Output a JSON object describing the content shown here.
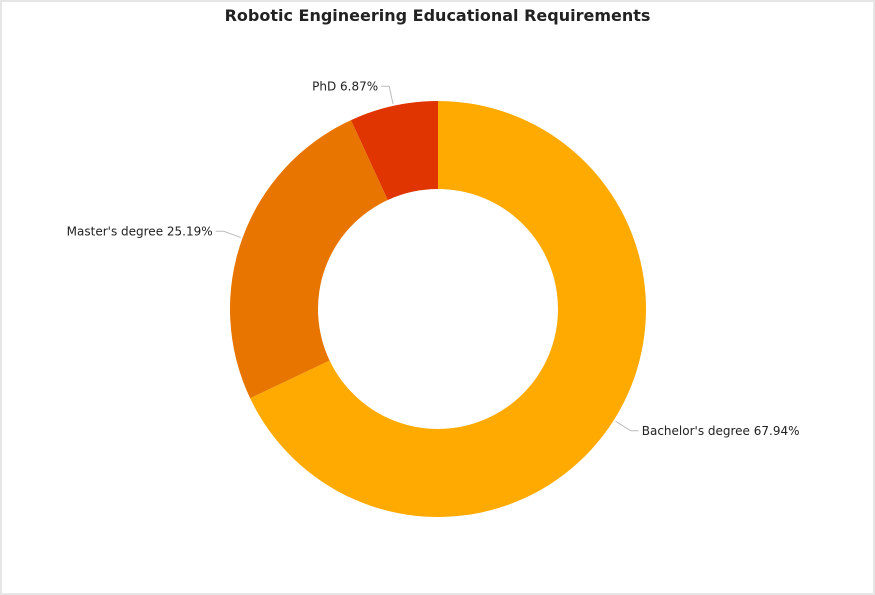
{
  "chart_data": {
    "type": "pie",
    "title": "Robotic Engineering Educational Requirements",
    "donut": true,
    "slices": [
      {
        "name": "Bachelor's degree",
        "value": 67.94,
        "label": "Bachelor's degree 67.94%",
        "color": "#FFAA00"
      },
      {
        "name": "Master's degree",
        "value": 25.19,
        "label": "Master's degree 25.19%",
        "color": "#E87500"
      },
      {
        "name": "PhD",
        "value": 6.87,
        "label": "PhD 6.87%",
        "color": "#E03500"
      }
    ],
    "colors": {
      "background": "#ffffff",
      "border": "#e6e6e6",
      "leader_line": "#bbbbbb"
    }
  }
}
